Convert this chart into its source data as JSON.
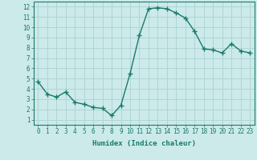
{
  "x": [
    0,
    1,
    2,
    3,
    4,
    5,
    6,
    7,
    8,
    9,
    10,
    11,
    12,
    13,
    14,
    15,
    16,
    17,
    18,
    19,
    20,
    21,
    22,
    23
  ],
  "y": [
    4.7,
    3.5,
    3.2,
    3.7,
    2.7,
    2.5,
    2.2,
    2.1,
    1.4,
    2.4,
    5.5,
    9.2,
    11.8,
    11.9,
    11.8,
    11.4,
    10.9,
    9.6,
    7.9,
    7.8,
    7.5,
    8.4,
    7.7,
    7.5
  ],
  "line_color": "#1a7a6a",
  "marker": "+",
  "marker_size": 4,
  "marker_lw": 1.0,
  "bg_color": "#cceaea",
  "grid_color": "#b0d4d4",
  "xlabel": "Humidex (Indice chaleur)",
  "ylim_min": 0.5,
  "ylim_max": 12.5,
  "xlim_min": -0.5,
  "xlim_max": 23.5,
  "yticks": [
    1,
    2,
    3,
    4,
    5,
    6,
    7,
    8,
    9,
    10,
    11,
    12
  ],
  "xticks": [
    0,
    1,
    2,
    3,
    4,
    5,
    6,
    7,
    8,
    9,
    10,
    11,
    12,
    13,
    14,
    15,
    16,
    17,
    18,
    19,
    20,
    21,
    22,
    23
  ],
  "tick_fontsize": 5.5,
  "label_fontsize": 6.5,
  "line_width": 1.0,
  "spine_color": "#1a7a6a"
}
